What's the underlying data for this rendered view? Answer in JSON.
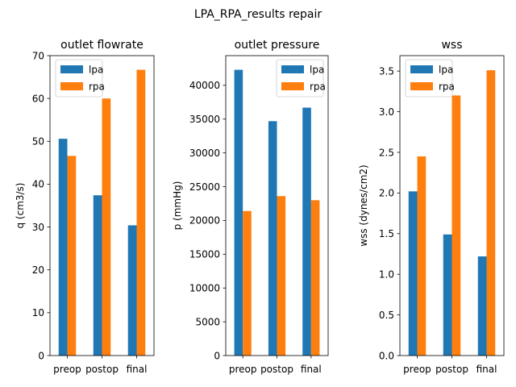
{
  "suptitle": "LPA_RPA_results repair",
  "colors": {
    "lpa": "#1f77b4",
    "rpa": "#ff7f0e"
  },
  "chart_data": [
    {
      "type": "bar",
      "title": "outlet flowrate",
      "xlabel": "",
      "ylabel": "q (cm3/s)",
      "categories": [
        "preop",
        "postop",
        "final"
      ],
      "series": [
        {
          "name": "lpa",
          "values": [
            50.6,
            37.4,
            30.4
          ]
        },
        {
          "name": "rpa",
          "values": [
            46.6,
            60.0,
            66.7
          ]
        }
      ],
      "ylim": [
        0,
        70
      ],
      "yticks": [
        0,
        10,
        20,
        30,
        40,
        50,
        60,
        70
      ],
      "ytick_labels": [
        "0",
        "10",
        "20",
        "30",
        "40",
        "50",
        "60",
        "70"
      ],
      "legend": "upper-left"
    },
    {
      "type": "bar",
      "title": "outlet pressure",
      "xlabel": "",
      "ylabel": "p (mmHg)",
      "categories": [
        "preop",
        "postop",
        "final"
      ],
      "series": [
        {
          "name": "lpa",
          "values": [
            42300,
            34700,
            36700
          ]
        },
        {
          "name": "rpa",
          "values": [
            21400,
            23600,
            23000
          ]
        }
      ],
      "ylim": [
        0,
        44400
      ],
      "yticks": [
        0,
        5000,
        10000,
        15000,
        20000,
        25000,
        30000,
        35000,
        40000
      ],
      "ytick_labels": [
        "0",
        "5000",
        "10000",
        "15000",
        "20000",
        "25000",
        "30000",
        "35000",
        "40000"
      ],
      "legend": "upper-right"
    },
    {
      "type": "bar",
      "title": "wss",
      "xlabel": "",
      "ylabel": "wss (dynes/cm2)",
      "categories": [
        "preop",
        "postop",
        "final"
      ],
      "series": [
        {
          "name": "lpa",
          "values": [
            2.02,
            1.49,
            1.22
          ]
        },
        {
          "name": "rpa",
          "values": [
            2.45,
            3.2,
            3.51
          ]
        }
      ],
      "ylim": [
        0,
        3.69
      ],
      "yticks": [
        0,
        0.5,
        1.0,
        1.5,
        2.0,
        2.5,
        3.0,
        3.5
      ],
      "ytick_labels": [
        "0.0",
        "0.5",
        "1.0",
        "1.5",
        "2.0",
        "2.5",
        "3.0",
        "3.5"
      ],
      "legend": "upper-left"
    }
  ]
}
